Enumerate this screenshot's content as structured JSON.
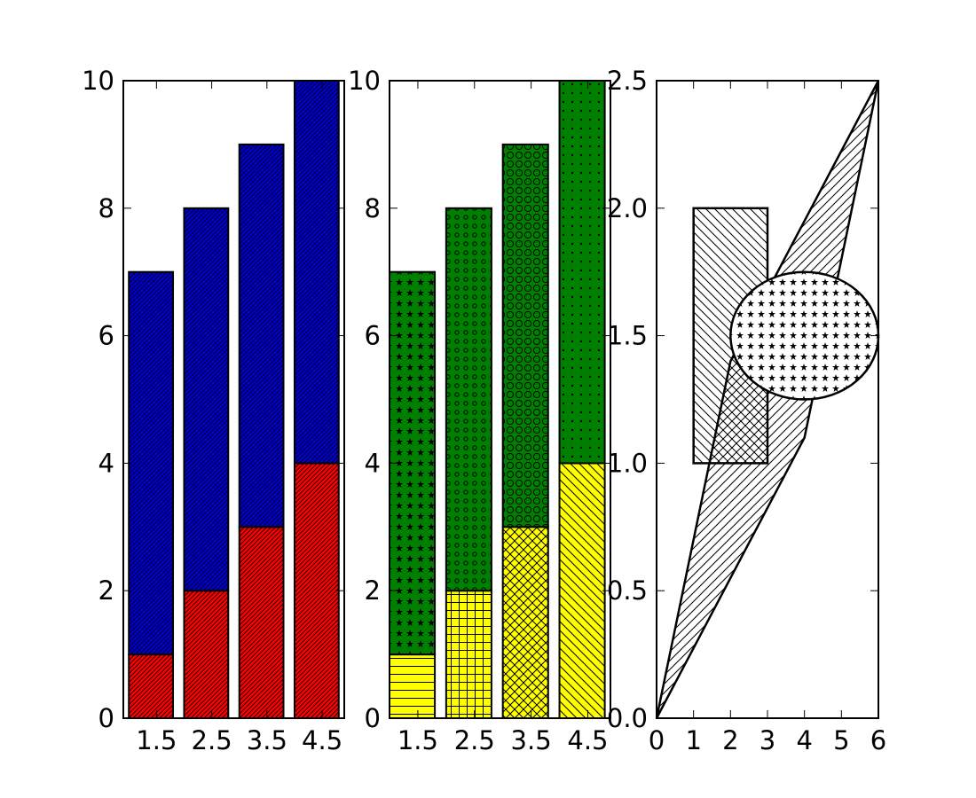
{
  "chart_data": [
    {
      "type": "bar",
      "stacked": true,
      "x": [
        1,
        2,
        3,
        4
      ],
      "bar_width": 0.8,
      "xlim": [
        0.9,
        4.9
      ],
      "ylim": [
        0,
        10
      ],
      "x_ticks": [
        "1.5",
        "2.5",
        "3.5",
        "4.5"
      ],
      "y_ticks": [
        "0",
        "2",
        "4",
        "6",
        "8",
        "10"
      ],
      "grid": false,
      "series": [
        {
          "values": [
            1,
            2,
            3,
            4
          ],
          "color": "#ff0000",
          "hatch": "dense-diagonal"
        },
        {
          "values": [
            6,
            6,
            6,
            6
          ],
          "color": "#0000cc",
          "hatch": "dense-diagonal"
        }
      ]
    },
    {
      "type": "bar",
      "stacked": true,
      "x": [
        1,
        2,
        3,
        4
      ],
      "bar_width": 0.8,
      "xlim": [
        1.0,
        4.9
      ],
      "ylim": [
        0,
        10
      ],
      "x_ticks": [
        "1.5",
        "2.5",
        "3.5",
        "4.5"
      ],
      "y_ticks": [
        "0",
        "2",
        "4",
        "6",
        "8",
        "10"
      ],
      "grid": false,
      "series": [
        {
          "values": [
            1,
            2,
            3,
            4
          ],
          "color": "#ffff00",
          "hatches": [
            "horizontal",
            "grid",
            "crosshatch",
            "backslash"
          ]
        },
        {
          "values": [
            6,
            6,
            6,
            6
          ],
          "color": "#008000",
          "hatches": [
            "stars",
            "small-circles",
            "large-circles",
            "dots"
          ]
        }
      ]
    },
    {
      "type": "shapes",
      "xlim": [
        0,
        6
      ],
      "ylim": [
        0,
        2.5
      ],
      "x_ticks": [
        "0",
        "1",
        "2",
        "3",
        "4",
        "5",
        "6"
      ],
      "y_ticks": [
        "0.0",
        "0.5",
        "1.0",
        "1.5",
        "2.0",
        "2.5"
      ],
      "grid": false,
      "shapes": [
        {
          "kind": "polygon",
          "points": [
            [
              0,
              0
            ],
            [
              2,
              1.4
            ],
            [
              6,
              2.5
            ],
            [
              4,
              1.1
            ]
          ],
          "hatch": "diagonal"
        },
        {
          "kind": "rectangle",
          "x0": 1,
          "y0": 1,
          "x1": 3,
          "y1": 2,
          "hatch": "backslash"
        },
        {
          "kind": "ellipse",
          "cx": 4,
          "cy": 1.5,
          "rx": 2,
          "ry": 0.25,
          "hatch": "stars"
        }
      ]
    }
  ]
}
